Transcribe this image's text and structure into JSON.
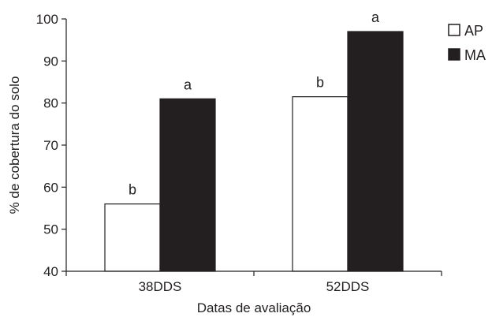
{
  "chart_data": {
    "type": "bar",
    "categories": [
      "38DDS",
      "52DDS"
    ],
    "series": [
      {
        "name": "AP",
        "values": [
          56,
          81.5
        ],
        "letters": [
          "b",
          "b"
        ]
      },
      {
        "name": "MA",
        "values": [
          81,
          97
        ],
        "letters": [
          "a",
          "a"
        ]
      }
    ],
    "xlabel": "Datas de avaliação",
    "ylabel": "% de cobertura do solo",
    "ylim": [
      40,
      100
    ],
    "yticks": [
      40,
      50,
      60,
      70,
      80,
      90,
      100
    ],
    "grid": false,
    "legend_position": "top-right",
    "colors": {
      "AP": "#ffffff",
      "MA": "#231f20",
      "outline": "#231f20"
    }
  }
}
